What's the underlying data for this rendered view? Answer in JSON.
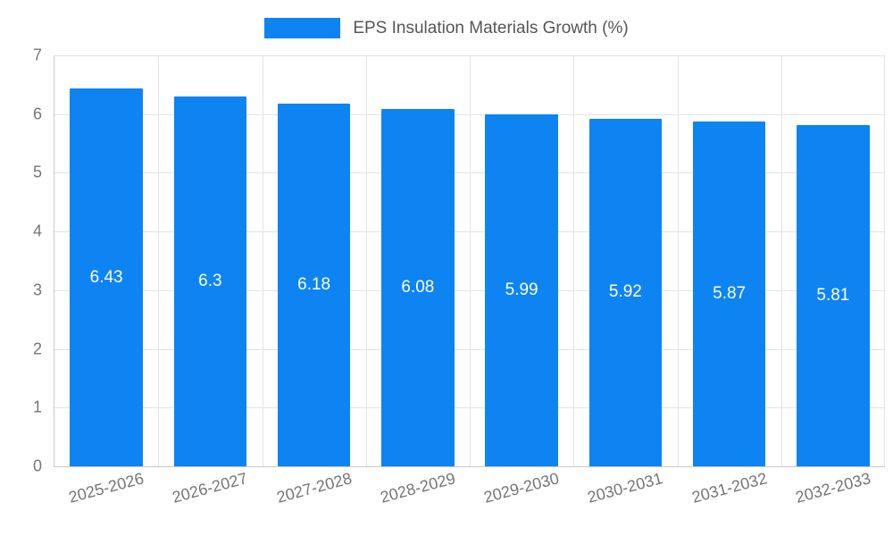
{
  "colors": {
    "bar": "#0d84f2",
    "axis_text": "#757575",
    "gridline": "#e3e3e3",
    "axis_line": "#c9c9c9",
    "value_label": "#ffffff",
    "legend_text": "#555555"
  },
  "chart_data": {
    "type": "bar",
    "title": "EPS Insulation Materials Growth (%)",
    "categories": [
      "2025-2026",
      "2026-2027",
      "2027-2028",
      "2028-2029",
      "2029-2030",
      "2030-2031",
      "2031-2032",
      "2032-2033"
    ],
    "values": [
      6.43,
      6.3,
      6.18,
      6.08,
      5.99,
      5.92,
      5.87,
      5.81
    ],
    "value_labels": [
      "6.43",
      "6.3",
      "6.18",
      "6.08",
      "5.99",
      "5.92",
      "5.87",
      "5.81"
    ],
    "xlabel": "",
    "ylabel": "",
    "ylim": [
      0,
      7
    ],
    "yticks": [
      0,
      1,
      2,
      3,
      4,
      5,
      6,
      7
    ],
    "grid": true,
    "legend_position": "top"
  }
}
